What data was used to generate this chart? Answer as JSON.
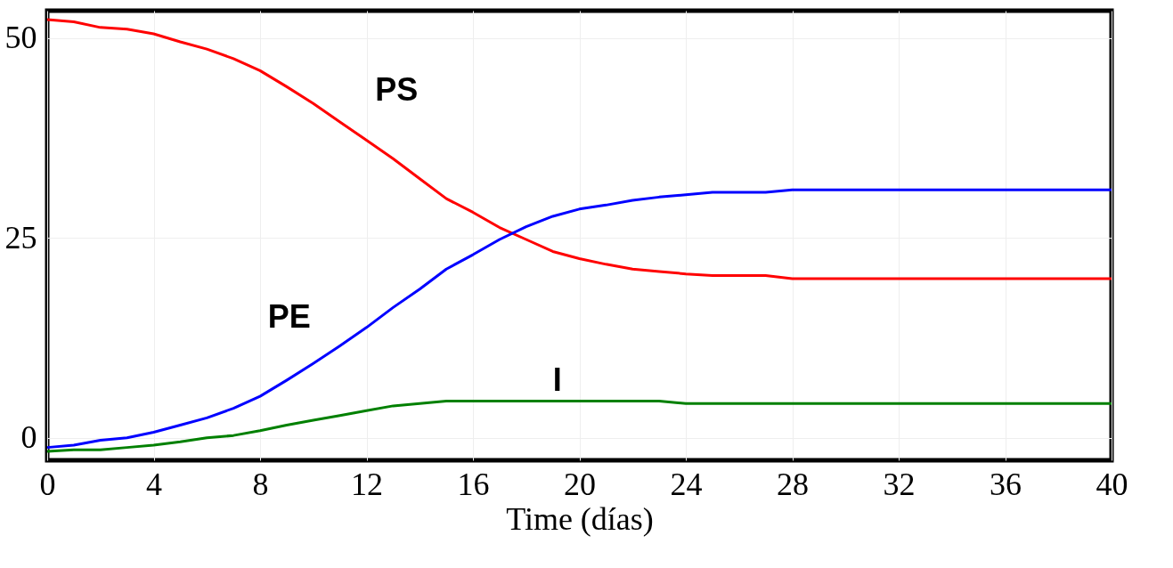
{
  "chart_data": {
    "type": "line",
    "xlabel": "Time (días)",
    "x": [
      0,
      1,
      2,
      3,
      4,
      5,
      6,
      7,
      8,
      9,
      10,
      11,
      12,
      13,
      14,
      15,
      16,
      17,
      18,
      19,
      20,
      21,
      22,
      23,
      24,
      25,
      26,
      27,
      28,
      29,
      30,
      31,
      32,
      33,
      34,
      35,
      36,
      37,
      38,
      39,
      40
    ],
    "series": [
      {
        "name": "PS",
        "color": "#ff0000",
        "values": [
          52.3,
          52.0,
          51.3,
          51.1,
          50.5,
          49.5,
          48.6,
          47.4,
          45.9,
          43.9,
          41.8,
          39.5,
          37.2,
          34.9,
          32.4,
          29.9,
          28.2,
          26.3,
          24.8,
          23.3,
          22.4,
          21.7,
          21.1,
          20.8,
          20.5,
          20.3,
          20.3,
          20.3,
          19.9,
          19.9,
          19.9,
          19.9,
          19.9,
          19.9,
          19.9,
          19.9,
          19.9,
          19.9,
          19.9,
          19.9,
          19.9
        ]
      },
      {
        "name": "PE",
        "color": "#0000ff",
        "values": [
          -1.2,
          -0.9,
          -0.3,
          0.0,
          0.7,
          1.6,
          2.5,
          3.7,
          5.2,
          7.2,
          9.3,
          11.5,
          13.8,
          16.3,
          18.6,
          21.1,
          22.9,
          24.8,
          26.4,
          27.7,
          28.6,
          29.1,
          29.7,
          30.1,
          30.4,
          30.7,
          30.7,
          30.7,
          31.0,
          31.0,
          31.0,
          31.0,
          31.0,
          31.0,
          31.0,
          31.0,
          31.0,
          31.0,
          31.0,
          31.0,
          31.0
        ]
      },
      {
        "name": "I",
        "color": "#008000",
        "values": [
          -1.7,
          -1.5,
          -1.5,
          -1.2,
          -0.9,
          -0.5,
          0.0,
          0.3,
          0.9,
          1.6,
          2.2,
          2.8,
          3.4,
          4.0,
          4.3,
          4.6,
          4.6,
          4.6,
          4.6,
          4.6,
          4.6,
          4.6,
          4.6,
          4.6,
          4.3,
          4.3,
          4.3,
          4.3,
          4.3,
          4.3,
          4.3,
          4.3,
          4.3,
          4.3,
          4.3,
          4.3,
          4.3,
          4.3,
          4.3,
          4.3,
          4.3
        ]
      }
    ],
    "xlim": [
      0,
      40
    ],
    "xticks": [
      0,
      4,
      8,
      12,
      16,
      20,
      24,
      28,
      32,
      36,
      40
    ],
    "ylim": [
      -2.8,
      53.4
    ],
    "yticks": [
      0,
      25,
      50
    ],
    "grid": true,
    "legend": false,
    "line_style": "solid",
    "marker": "none"
  }
}
